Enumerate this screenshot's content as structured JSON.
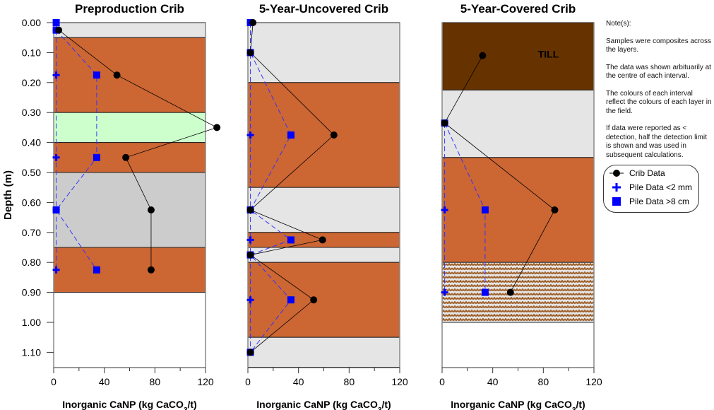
{
  "notes": {
    "title": "Note(s):",
    "paragraphs": [
      "Samples were composites across the layers.",
      "The data was shown arbituarily at the centre of each interval.",
      "The colours of each interval reflect the colours of each layer in the field.",
      "If data were reported as < detection, half the detection limit is shown and was used in subsequent calculations."
    ]
  },
  "legend": {
    "crib": "Crib Data",
    "pile_fine": "Pile Data <2 mm",
    "pile_coarse": "Pile Data >8 cm"
  },
  "colors": {
    "orange": "#CC6633",
    "light_gray": "#E5E5E5",
    "green": "#CCFFCC",
    "gray": "#CCCCCC",
    "till": "#663300",
    "hatch": "#A0622D",
    "series_crib": "#000000",
    "series_pile": "#0000FF"
  },
  "chart_data": [
    {
      "type": "line",
      "title": "Preproduction Crib",
      "xlabel": "Inorganic CaNP (kg CaCO3/t)",
      "ylabel": "Depth (m)",
      "xlim": [
        0,
        120
      ],
      "ylim": [
        0,
        1.15
      ],
      "xticks": [
        "0",
        "40",
        "80",
        "120"
      ],
      "yticks": [
        "0.00",
        "0.10",
        "0.20",
        "0.30",
        "0.40",
        "0.50",
        "0.60",
        "0.70",
        "0.80",
        "0.90",
        "1.00",
        "1.10"
      ],
      "layers": [
        {
          "top": 0,
          "bottom": 0.05,
          "color": "light_gray"
        },
        {
          "top": 0.05,
          "bottom": 0.3,
          "color": "orange"
        },
        {
          "top": 0.3,
          "bottom": 0.4,
          "color": "green"
        },
        {
          "top": 0.4,
          "bottom": 0.5,
          "color": "orange"
        },
        {
          "top": 0.5,
          "bottom": 0.75,
          "color": "gray"
        },
        {
          "top": 0.75,
          "bottom": 0.9,
          "color": "orange"
        }
      ],
      "series": [
        {
          "name": "Crib Data",
          "points": [
            [
              4,
              0.025
            ],
            [
              50,
              0.175
            ],
            [
              129,
              0.35
            ],
            [
              57,
              0.45
            ],
            [
              77,
              0.625
            ],
            [
              77,
              0.825
            ]
          ]
        },
        {
          "name": "Pile Data <2 mm",
          "points": [
            [
              2,
              0.025
            ],
            [
              2,
              0.175
            ],
            [
              2,
              0.45
            ],
            [
              2,
              0.625
            ],
            [
              2,
              0.825
            ]
          ]
        },
        {
          "name": "Pile Data >8 cm",
          "points": [
            [
              2,
              0.0
            ],
            [
              2,
              0.025
            ],
            [
              34,
              0.175
            ],
            [
              34,
              0.45
            ],
            [
              2,
              0.625
            ],
            [
              34,
              0.825
            ]
          ]
        }
      ]
    },
    {
      "type": "line",
      "title": "5-Year-Uncovered Crib",
      "xlabel": "Inorganic CaNP (kg CaCO3/t)",
      "xlim": [
        0,
        120
      ],
      "ylim": [
        0,
        1.15
      ],
      "xticks": [
        "0",
        "40",
        "80",
        "120"
      ],
      "layers": [
        {
          "top": 0,
          "bottom": 0.2,
          "color": "light_gray"
        },
        {
          "top": 0.2,
          "bottom": 0.55,
          "color": "orange"
        },
        {
          "top": 0.55,
          "bottom": 0.7,
          "color": "light_gray"
        },
        {
          "top": 0.7,
          "bottom": 0.75,
          "color": "orange"
        },
        {
          "top": 0.75,
          "bottom": 0.8,
          "color": "light_gray"
        },
        {
          "top": 0.8,
          "bottom": 1.05,
          "color": "orange"
        },
        {
          "top": 1.05,
          "bottom": 1.15,
          "color": "light_gray"
        }
      ],
      "series": [
        {
          "name": "Crib Data",
          "points": [
            [
              4,
              0.0
            ],
            [
              2,
              0.1
            ],
            [
              68,
              0.375
            ],
            [
              2,
              0.625
            ],
            [
              59,
              0.725
            ],
            [
              2,
              0.775
            ],
            [
              52,
              0.925
            ],
            [
              2,
              1.1
            ]
          ]
        },
        {
          "name": "Pile Data <2 mm",
          "points": [
            [
              2,
              0.0
            ],
            [
              2,
              0.1
            ],
            [
              2,
              0.375
            ],
            [
              2,
              0.625
            ],
            [
              2,
              0.725
            ],
            [
              2,
              0.775
            ],
            [
              2,
              0.925
            ],
            [
              2,
              1.1
            ]
          ]
        },
        {
          "name": "Pile Data >8 cm",
          "points": [
            [
              2,
              0.0
            ],
            [
              2,
              0.1
            ],
            [
              34,
              0.375
            ],
            [
              2,
              0.625
            ],
            [
              34,
              0.725
            ],
            [
              2,
              0.775
            ],
            [
              34,
              0.925
            ],
            [
              2,
              1.1
            ]
          ]
        }
      ]
    },
    {
      "type": "line",
      "title": "5-Year-Covered Crib",
      "xlabel": "Inorganic CaNP (kg CaCO3/t)",
      "xlim": [
        0,
        120
      ],
      "ylim": [
        0,
        1.15
      ],
      "xticks": [
        "0",
        "40",
        "80",
        "120"
      ],
      "layers": [
        {
          "top": 0,
          "bottom": 0.225,
          "color": "till",
          "label": "TILL"
        },
        {
          "top": 0.225,
          "bottom": 0.45,
          "color": "light_gray"
        },
        {
          "top": 0.45,
          "bottom": 0.8,
          "color": "orange"
        },
        {
          "top": 0.8,
          "bottom": 1.0,
          "color": "hatch"
        }
      ],
      "series": [
        {
          "name": "Crib Data",
          "points": [
            [
              32,
              0.11
            ],
            [
              2,
              0.335
            ],
            [
              89,
              0.625
            ],
            [
              54,
              0.9
            ]
          ]
        },
        {
          "name": "Pile Data <2 mm",
          "points": [
            [
              2,
              0.335
            ],
            [
              2,
              0.625
            ],
            [
              2,
              0.9
            ]
          ]
        },
        {
          "name": "Pile Data >8 cm",
          "points": [
            [
              2,
              0.335
            ],
            [
              34,
              0.625
            ],
            [
              34,
              0.9
            ]
          ]
        }
      ]
    }
  ]
}
